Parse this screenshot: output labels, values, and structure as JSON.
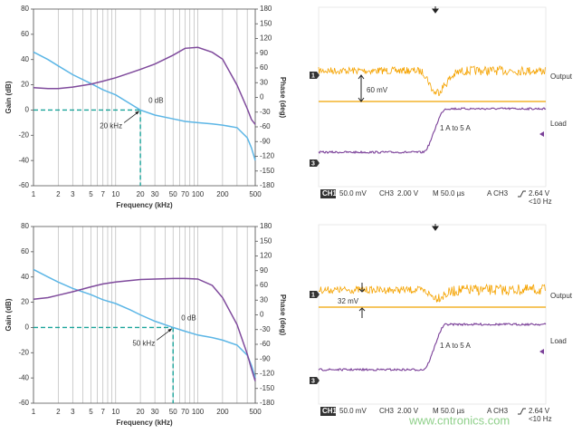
{
  "chart_data": [
    {
      "type": "line",
      "x_label": "Frequency (kHz)",
      "y_label": "Gain (dB)",
      "y2_label": "Phase (deg)",
      "xscale": "log",
      "xlim": [
        1,
        500
      ],
      "xticks": [
        1,
        2,
        3,
        5,
        7,
        10,
        20,
        30,
        50,
        70,
        100,
        200,
        500
      ],
      "minor_xticks": [
        4,
        6,
        8,
        9,
        40,
        60,
        80,
        90,
        300,
        400
      ],
      "ylim": [
        -60,
        80
      ],
      "yticks": [
        -60,
        -40,
        -20,
        0,
        20,
        40,
        60,
        80
      ],
      "y2lim": [
        -180,
        180
      ],
      "y2ticks": [
        -180,
        -150,
        -120,
        -90,
        -60,
        -30,
        0,
        30,
        60,
        90,
        120,
        150,
        180
      ],
      "x": [
        1,
        1.5,
        2,
        3,
        5,
        7,
        10,
        15,
        20,
        30,
        50,
        70,
        100,
        150,
        200,
        300,
        400,
        450,
        500
      ],
      "series": [
        {
          "color": "#5cb6e6",
          "values": [
            46,
            40,
            35,
            28,
            21,
            16,
            12,
            5,
            0,
            -4,
            -7,
            -9,
            -10,
            -11,
            -12,
            -14,
            -22,
            -30,
            -40
          ]
        },
        {
          "color": "#7f4a9c",
          "axis": "y2",
          "values": [
            20,
            18,
            18,
            21,
            27,
            33,
            40,
            50,
            57,
            68,
            86,
            100,
            102,
            92,
            78,
            25,
            -23,
            -45,
            -55
          ]
        }
      ],
      "marker": {
        "x": 20,
        "y": 0,
        "label": "0 dB",
        "x_text": "20 kHz",
        "color": "#1aa39a"
      }
    },
    {
      "type": "line",
      "x_label": "Frequency (kHz)",
      "y_label": "Gain (dB)",
      "y2_label": "Phase (deg)",
      "xscale": "log",
      "xlim": [
        1,
        500
      ],
      "xticks": [
        1,
        2,
        3,
        5,
        7,
        10,
        20,
        30,
        50,
        70,
        100,
        200,
        500
      ],
      "minor_xticks": [
        4,
        6,
        8,
        9,
        40,
        60,
        80,
        90,
        300,
        400
      ],
      "ylim": [
        -60,
        80
      ],
      "yticks": [
        -60,
        -40,
        -20,
        0,
        20,
        40,
        60,
        80
      ],
      "y2lim": [
        -180,
        180
      ],
      "y2ticks": [
        -180,
        -150,
        -120,
        -90,
        -60,
        -30,
        0,
        30,
        60,
        90,
        120,
        150,
        180
      ],
      "x": [
        1,
        1.5,
        2,
        3,
        5,
        7,
        10,
        15,
        20,
        30,
        50,
        70,
        100,
        150,
        200,
        300,
        400,
        450,
        500
      ],
      "series": [
        {
          "color": "#5cb6e6",
          "values": [
            46,
            40,
            36,
            31,
            26,
            22,
            19,
            14,
            10,
            5,
            0,
            -3,
            -6,
            -8,
            -10,
            -14,
            -22,
            -30,
            -40
          ]
        },
        {
          "color": "#7f4a9c",
          "axis": "y2",
          "values": [
            32,
            35,
            40,
            47,
            57,
            63,
            67,
            70,
            72,
            73,
            74,
            74,
            73,
            60,
            35,
            -20,
            -80,
            -110,
            -135
          ]
        }
      ],
      "marker": {
        "x": 50,
        "y": 0,
        "label": "0 dB",
        "x_text": "50 kHz",
        "color": "#1aa39a"
      }
    }
  ],
  "scopes": [
    {
      "ch1_marker": "1",
      "ch3_marker": "3",
      "output": "Output",
      "load": "Load",
      "ripple": "60 mV",
      "step": "1 A to 5 A",
      "status": [
        "CH1",
        "50.0 mV",
        "CH3",
        "2.00 V",
        "M 50.0 µs",
        "A  CH3",
        "2.64 V",
        "<10 Hz"
      ]
    },
    {
      "ch1_marker": "1",
      "ch3_marker": "3",
      "output": "Output",
      "load": "Load",
      "ripple": "32 mV",
      "step": "1 A to 5 A",
      "status": [
        "CH1",
        "50.0 mV",
        "CH3",
        "2.00 V",
        "M 50.0 µs",
        "A  CH3",
        "2.64 V",
        "<10 Hz"
      ]
    }
  ],
  "watermark": "www.cntronics.com"
}
